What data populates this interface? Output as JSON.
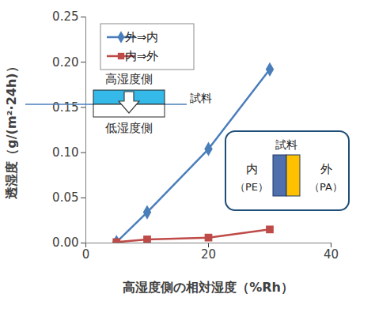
{
  "chart_data": {
    "type": "line",
    "x_label": "高湿度側の相対湿度（%Rh）",
    "y_label": "透湿度（g/(m²·24h)）",
    "x": [
      5,
      10,
      20,
      30
    ],
    "series": [
      {
        "name": "外⇒内",
        "color": "#4a7ebb",
        "marker": "diamond",
        "values": [
          0.001,
          0.034,
          0.104,
          0.192
        ]
      },
      {
        "name": "内⇒外",
        "color": "#be4b48",
        "marker": "square",
        "values": [
          0.001,
          0.004,
          0.006,
          0.015
        ]
      }
    ],
    "xlim": [
      0,
      40
    ],
    "xticks": [
      0,
      20,
      40
    ],
    "ylim": [
      0,
      0.25
    ],
    "yticks": [
      {
        "value": 0,
        "label": "0.00"
      },
      {
        "value": 0.05,
        "label": "0.05"
      },
      {
        "value": 0.1,
        "label": "0.10"
      },
      {
        "value": 0.15,
        "label": "0.15"
      },
      {
        "value": 0.2,
        "label": "0.20"
      },
      {
        "value": 0.25,
        "label": "0.25"
      }
    ],
    "grid": false,
    "legend": "upper left",
    "annotations": [
      "高湿度側",
      "低湿度側",
      "試料",
      "試料",
      "内",
      "（PE）",
      "外",
      "（PA）"
    ]
  }
}
